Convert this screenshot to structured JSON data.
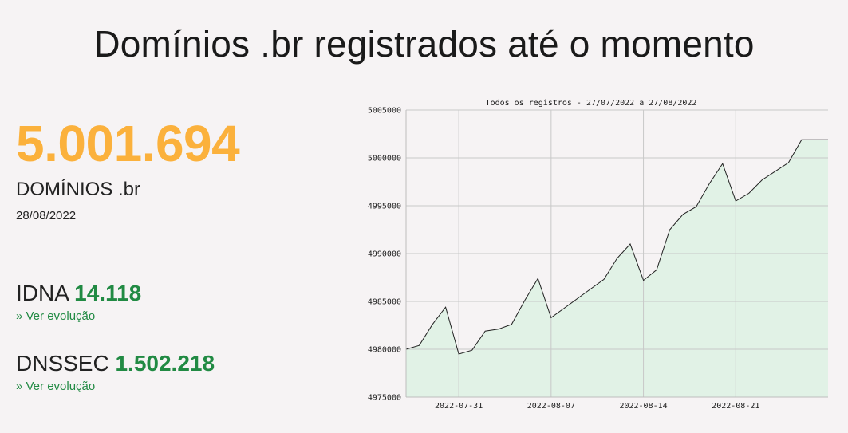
{
  "header": {
    "title": "Domínios .br registrados até o momento"
  },
  "summary": {
    "total": "5.001.694",
    "total_label": "DOMÍNIOS .br",
    "date": "28/08/2022"
  },
  "metrics": {
    "idna": {
      "label": "IDNA",
      "value": "14.118",
      "link": "»  Ver evolução"
    },
    "dnssec": {
      "label": "DNSSEC",
      "value": "1.502.218",
      "link": "»  Ver evolução"
    }
  },
  "colors": {
    "accent_orange": "#fbb13c",
    "accent_green": "#218a43",
    "chart_fill": "#e1f2e6",
    "chart_line": "#222222",
    "grid": "#c8c8c8",
    "background": "#f6f3f4"
  },
  "chart_data": {
    "type": "area",
    "title": "Todos os registros - 27/07/2022 a 27/08/2022",
    "xlabel": "",
    "ylabel": "",
    "ylim": [
      4975000,
      5005000
    ],
    "xlim": [
      "2022-07-27",
      "2022-08-28"
    ],
    "grid": true,
    "y_ticks": [
      "4975000",
      "4980000",
      "4985000",
      "4990000",
      "4995000",
      "5000000",
      "5005000"
    ],
    "x_ticks": [
      "2022-07-31",
      "2022-08-07",
      "2022-08-14",
      "2022-08-21"
    ],
    "series": [
      {
        "x": [
          "2022-07-27",
          "2022-07-28",
          "2022-07-29",
          "2022-07-30",
          "2022-07-31",
          "2022-08-01",
          "2022-08-02",
          "2022-08-03",
          "2022-08-04",
          "2022-08-05",
          "2022-08-06",
          "2022-08-07",
          "2022-08-08",
          "2022-08-09",
          "2022-08-10",
          "2022-08-11",
          "2022-08-12",
          "2022-08-13",
          "2022-08-14",
          "2022-08-15",
          "2022-08-16",
          "2022-08-17",
          "2022-08-18",
          "2022-08-19",
          "2022-08-20",
          "2022-08-21",
          "2022-08-22",
          "2022-08-23",
          "2022-08-24",
          "2022-08-25",
          "2022-08-26",
          "2022-08-27",
          "2022-08-28"
        ],
        "values": [
          4980000,
          4980400,
          4982600,
          4984400,
          4979500,
          4979900,
          4981900,
          4982100,
          4982600,
          4985100,
          4987400,
          4983300,
          4984300,
          4985300,
          4986300,
          4987300,
          4989500,
          4991000,
          4987200,
          4988300,
          4992500,
          4994100,
          4994900,
          4997300,
          4999400,
          4995500,
          4996300,
          4997700,
          4998600,
          4999500,
          5001900,
          5001900,
          5001900
        ]
      }
    ]
  }
}
